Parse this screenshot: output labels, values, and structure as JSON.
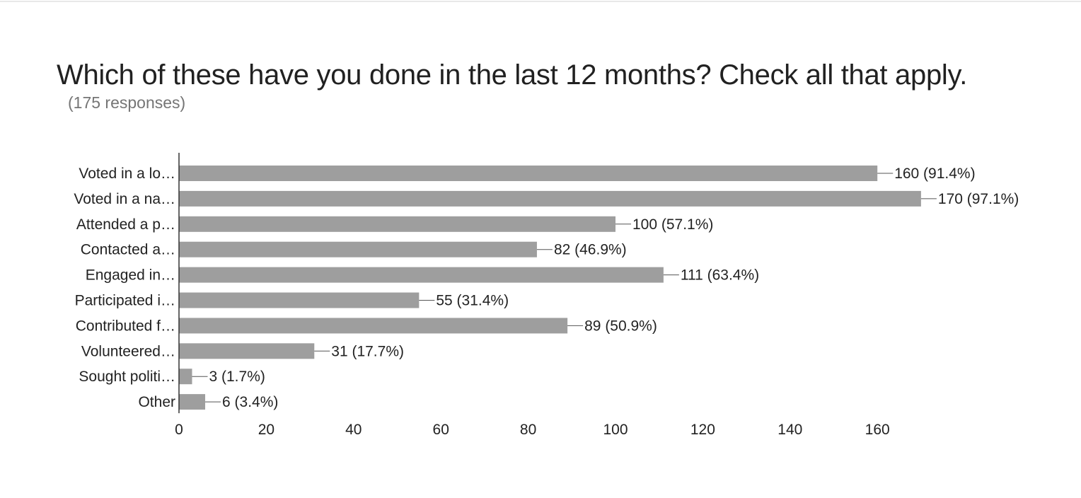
{
  "header": {
    "title": "Which of these have you done in the last 12 months? Check all that apply.",
    "subtitle": "(175 responses)"
  },
  "colors": {
    "bar": "#9e9e9e",
    "axis": "#333333",
    "text": "#222222"
  },
  "chart_data": {
    "type": "bar",
    "orientation": "horizontal",
    "categories": [
      "Voted in a lo…",
      "Voted in a na…",
      "Attended a p…",
      "Contacted a…",
      "Engaged in…",
      "Participated i…",
      "Contributed f…",
      "Volunteered…",
      "Sought politi…",
      "Other"
    ],
    "values": [
      160,
      170,
      100,
      82,
      111,
      55,
      89,
      31,
      3,
      6
    ],
    "data_labels": [
      "160 (91.4%)",
      "170 (97.1%)",
      "100 (57.1%)",
      "82 (46.9%)",
      "111 (63.4%)",
      "55 (31.4%)",
      "89 (50.9%)",
      "31 (17.7%)",
      "3 (1.7%)",
      "6 (3.4%)"
    ],
    "x_ticks": [
      "0",
      "20",
      "40",
      "60",
      "80",
      "100",
      "120",
      "140",
      "160"
    ],
    "xlim": [
      0,
      170
    ],
    "grid": false,
    "legend": "none"
  }
}
